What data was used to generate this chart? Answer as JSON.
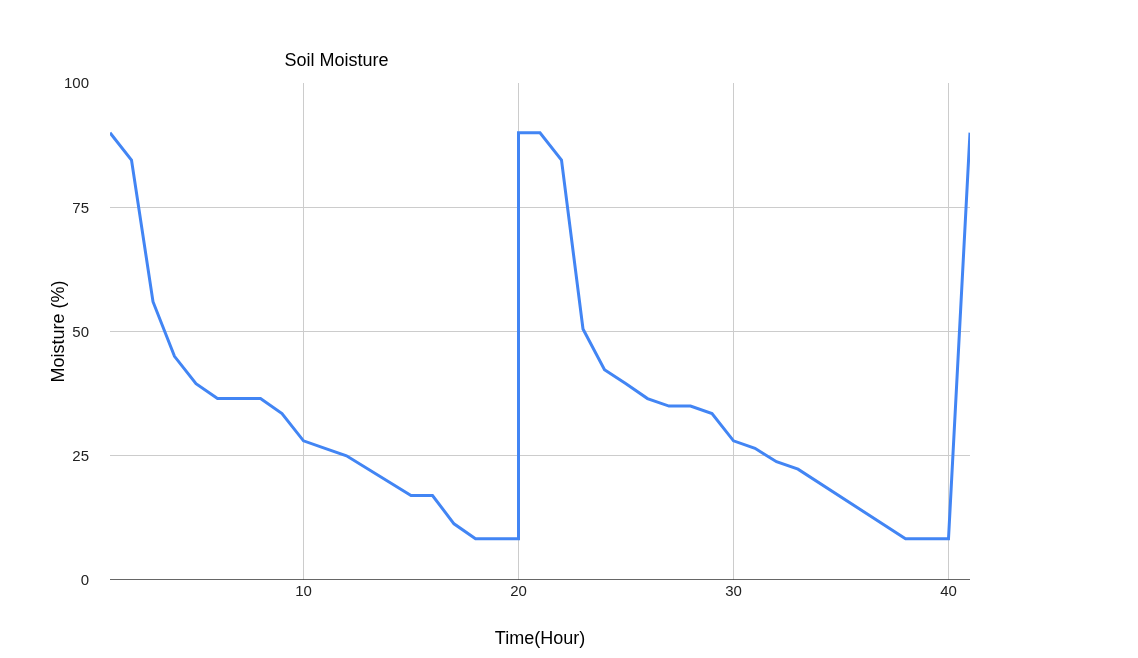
{
  "chart_data": {
    "type": "line",
    "title": "Soil Moisture",
    "xlabel": "Time(Hour)",
    "ylabel": "Moisture (%)",
    "x": [
      1,
      2,
      3,
      4,
      5,
      6,
      7,
      8,
      9,
      10,
      11,
      12,
      15,
      16,
      17,
      18,
      19,
      20,
      20,
      21,
      22,
      23,
      24,
      25,
      26,
      27,
      28,
      29,
      30,
      31,
      32,
      33,
      38,
      39,
      40,
      41
    ],
    "series": [
      {
        "color": "#4285f4",
        "values": [
          90,
          84.5,
          56,
          45,
          39.5,
          36.5,
          36.5,
          36.5,
          33.5,
          28,
          26.5,
          25,
          17,
          17,
          11.3,
          8.3,
          8.3,
          8.3,
          90,
          90,
          84.5,
          50.5,
          42.3,
          39.5,
          36.5,
          35,
          35,
          33.5,
          28,
          26.5,
          23.8,
          22.3,
          8.3,
          8.3,
          8.3,
          90
        ]
      }
    ],
    "xlim": [
      1,
      41
    ],
    "ylim": [
      0,
      100
    ],
    "xticks": [
      10,
      20,
      30,
      40
    ],
    "yticks": [
      0,
      25,
      50,
      75,
      100
    ],
    "grid": true,
    "marker": "none",
    "line_style": "solid"
  }
}
